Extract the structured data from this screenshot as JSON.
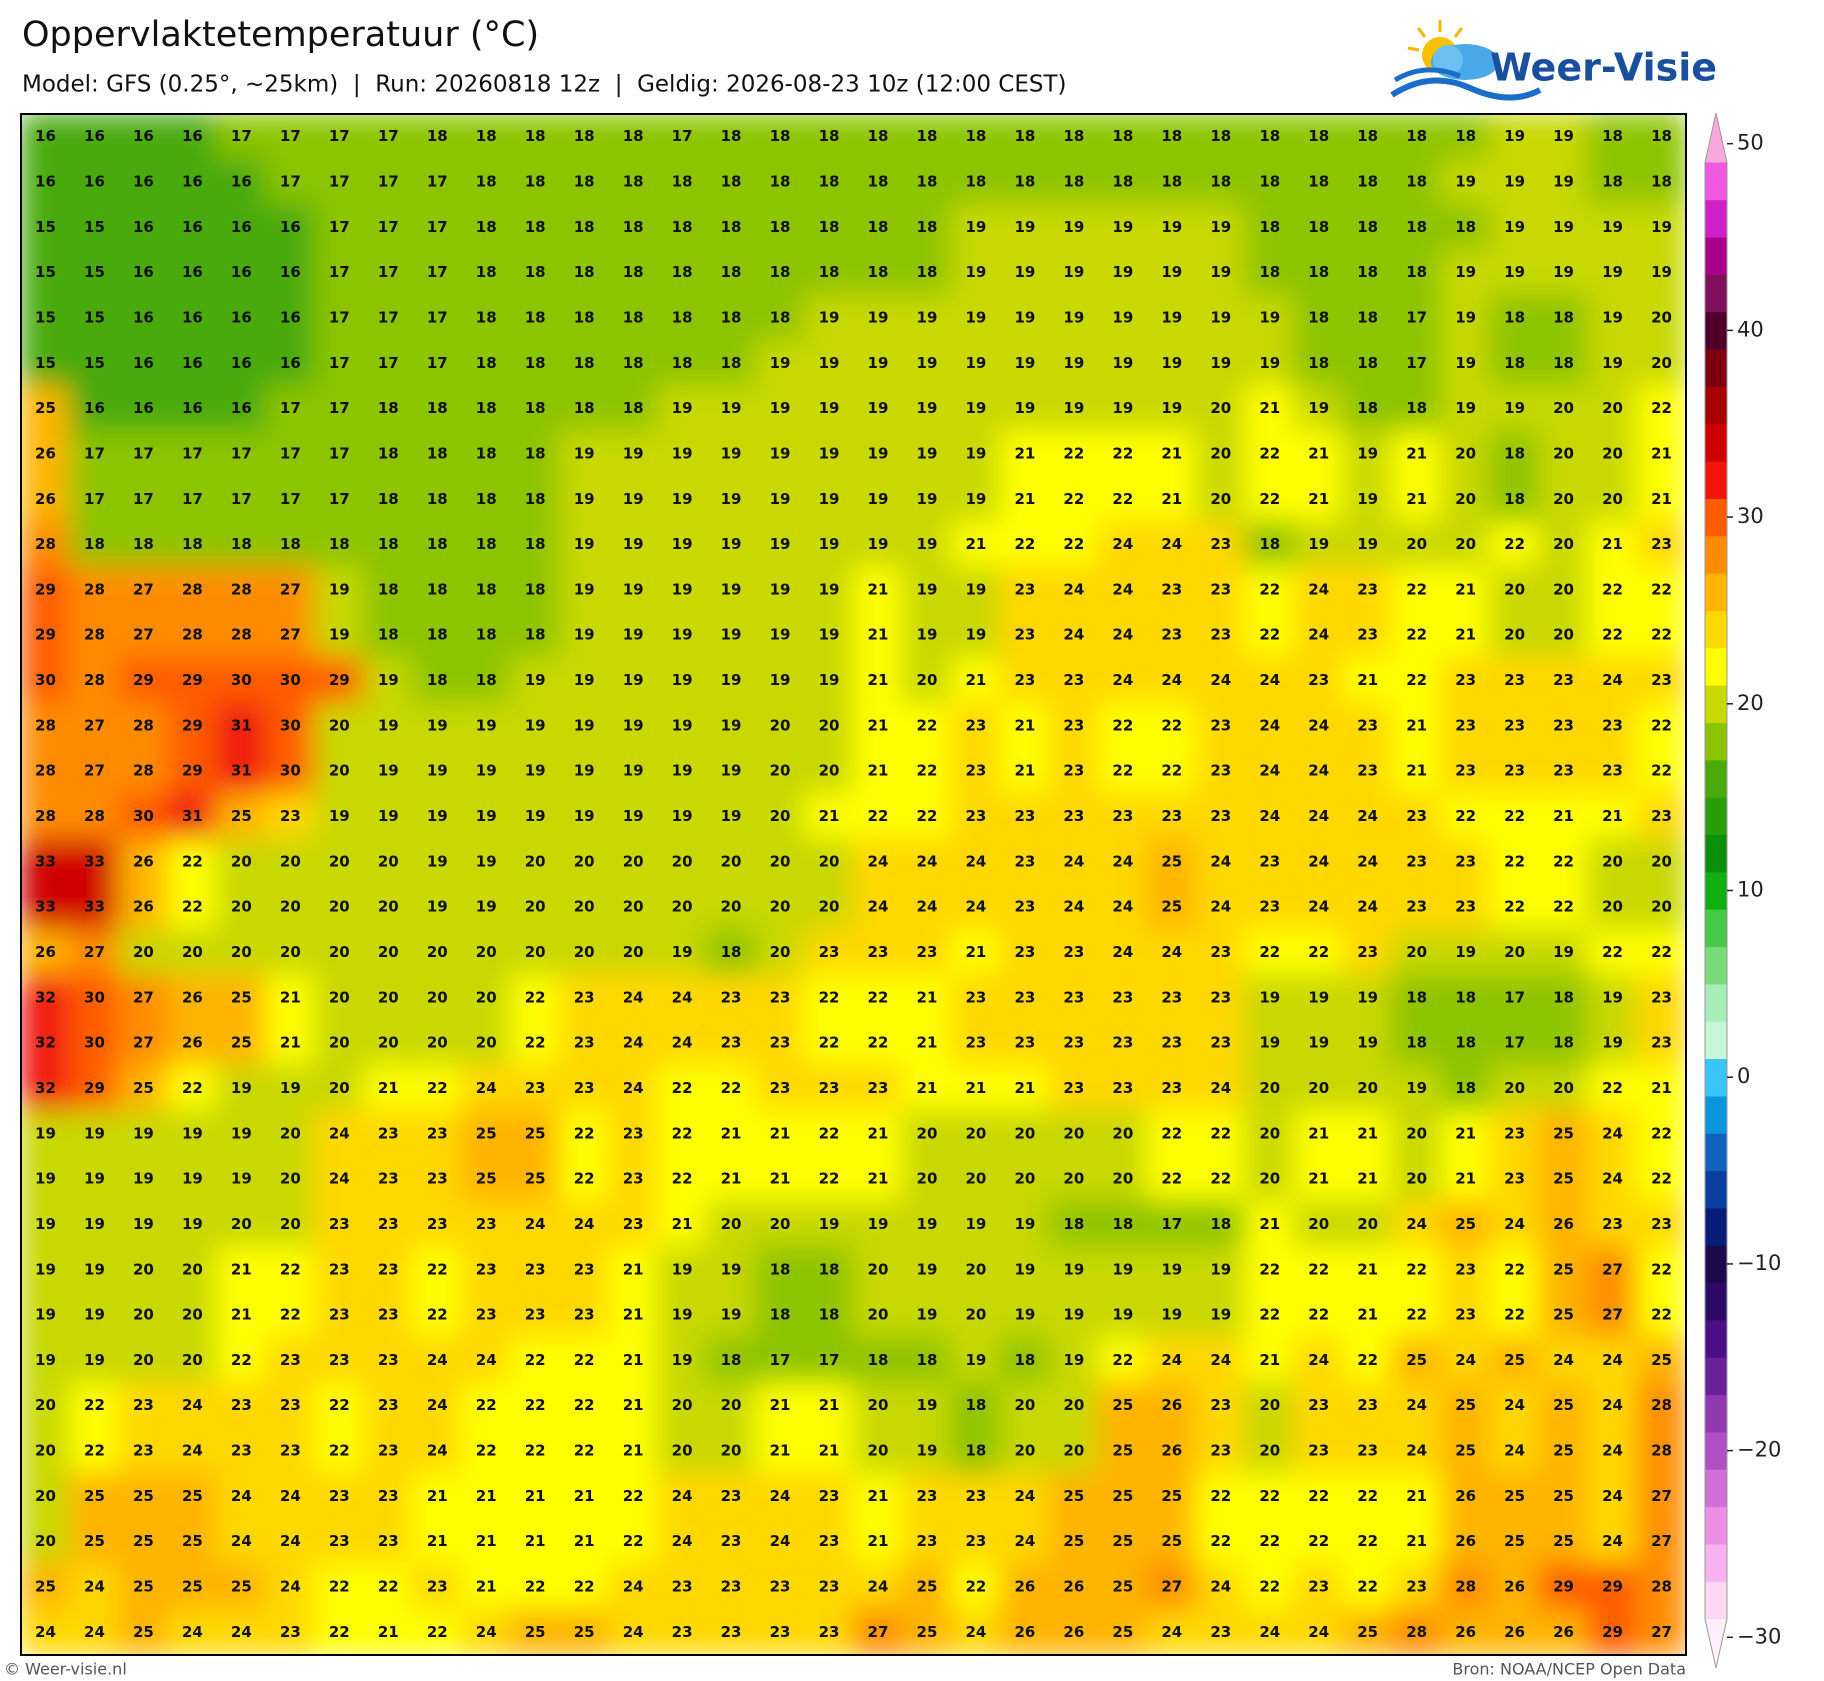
{
  "header": {
    "title": "Oppervlaktetemperatuur (°C)",
    "subtitle": "Model: GFS (0.25°, ~25km)  |  Run: 20260818 12z  |  Geldig: 2026-08-23 10z (12:00 CEST)",
    "logo": "Weer-Visie"
  },
  "footer": {
    "left": "© Weer-visie.nl",
    "right": "Bron: NOAA/NCEP Open Data"
  },
  "colorbar": {
    "lim": [
      -31,
      51
    ],
    "step": 2,
    "ticks": [
      {
        "value": -30,
        "label": "−30"
      },
      {
        "value": -20,
        "label": "−20"
      },
      {
        "value": -10,
        "label": "−10"
      },
      0,
      10,
      20,
      30,
      40,
      50
    ],
    "colors": [
      "#fdf0fb",
      "#fcd8f5",
      "#f8b2f0",
      "#ec8ee6",
      "#d070d8",
      "#b050c4",
      "#9038b0",
      "#6a209a",
      "#4a0e86",
      "#2c0a66",
      "#1a0a4a",
      "#061c78",
      "#0a3ea0",
      "#1062be",
      "#0a96dc",
      "#38c4f4",
      "#c8f5d8",
      "#a8ecb8",
      "#78da78",
      "#48c848",
      "#10b010",
      "#0a900a",
      "#2a9e0a",
      "#4aaa0a",
      "#8cc400",
      "#c8d800",
      "#ffff00",
      "#ffd800",
      "#ffb400",
      "#ff8c00",
      "#ff5c00",
      "#f0140a",
      "#d00000",
      "#a80000",
      "#7e0010",
      "#500028",
      "#80105e",
      "#a8008c",
      "#d020c8",
      "#f058e0",
      "#f8a8dc",
      "#fde0f4"
    ]
  },
  "grid": {
    "rows": [
      [
        16,
        16,
        16,
        16,
        17,
        17,
        17,
        17,
        18,
        18,
        18,
        18,
        18,
        17,
        18,
        18,
        18,
        18,
        18,
        18,
        18,
        18,
        18,
        18,
        18,
        18,
        18,
        18,
        18,
        18,
        19,
        19,
        18,
        18
      ],
      [
        16,
        16,
        16,
        16,
        16,
        17,
        17,
        17,
        17,
        18,
        18,
        18,
        18,
        18,
        18,
        18,
        18,
        18,
        18,
        18,
        18,
        18,
        18,
        18,
        18,
        18,
        18,
        18,
        18,
        19,
        19,
        19,
        18,
        18
      ],
      [
        15,
        15,
        16,
        16,
        16,
        16,
        17,
        17,
        17,
        18,
        18,
        18,
        18,
        18,
        18,
        18,
        18,
        18,
        18,
        19,
        19,
        19,
        19,
        19,
        19,
        18,
        18,
        18,
        18,
        18,
        19,
        19,
        19,
        19
      ],
      [
        15,
        15,
        16,
        16,
        16,
        16,
        17,
        17,
        17,
        18,
        18,
        18,
        18,
        18,
        18,
        18,
        18,
        18,
        18,
        19,
        19,
        19,
        19,
        19,
        19,
        18,
        18,
        18,
        18,
        19,
        19,
        19,
        19,
        19
      ],
      [
        15,
        15,
        16,
        16,
        16,
        16,
        17,
        17,
        17,
        18,
        18,
        18,
        18,
        18,
        18,
        18,
        19,
        19,
        19,
        19,
        19,
        19,
        19,
        19,
        19,
        19,
        18,
        18,
        17,
        19,
        18,
        18,
        19,
        20
      ],
      [
        15,
        15,
        16,
        16,
        16,
        16,
        17,
        17,
        17,
        18,
        18,
        18,
        18,
        18,
        18,
        19,
        19,
        19,
        19,
        19,
        19,
        19,
        19,
        19,
        19,
        19,
        18,
        18,
        17,
        19,
        18,
        18,
        19,
        20
      ],
      [
        25,
        16,
        16,
        16,
        16,
        17,
        17,
        18,
        18,
        18,
        18,
        18,
        18,
        19,
        19,
        19,
        19,
        19,
        19,
        19,
        19,
        19,
        19,
        19,
        20,
        21,
        19,
        18,
        18,
        19,
        19,
        20,
        20,
        22
      ],
      [
        26,
        17,
        17,
        17,
        17,
        17,
        17,
        18,
        18,
        18,
        18,
        19,
        19,
        19,
        19,
        19,
        19,
        19,
        19,
        19,
        21,
        22,
        22,
        21,
        20,
        22,
        21,
        19,
        21,
        20,
        18,
        20,
        20,
        21
      ],
      [
        26,
        17,
        17,
        17,
        17,
        17,
        17,
        18,
        18,
        18,
        18,
        19,
        19,
        19,
        19,
        19,
        19,
        19,
        19,
        19,
        21,
        22,
        22,
        21,
        20,
        22,
        21,
        19,
        21,
        20,
        18,
        20,
        20,
        21
      ],
      [
        28,
        18,
        18,
        18,
        18,
        18,
        18,
        18,
        18,
        18,
        18,
        19,
        19,
        19,
        19,
        19,
        19,
        19,
        19,
        21,
        22,
        22,
        24,
        24,
        23,
        18,
        19,
        19,
        20,
        20,
        22,
        20,
        21,
        23
      ],
      [
        29,
        28,
        27,
        28,
        28,
        27,
        19,
        18,
        18,
        18,
        18,
        19,
        19,
        19,
        19,
        19,
        19,
        21,
        19,
        19,
        23,
        24,
        24,
        23,
        23,
        22,
        24,
        23,
        22,
        21,
        20,
        20,
        22,
        22
      ],
      [
        29,
        28,
        27,
        28,
        28,
        27,
        19,
        18,
        18,
        18,
        18,
        19,
        19,
        19,
        19,
        19,
        19,
        21,
        19,
        19,
        23,
        24,
        24,
        23,
        23,
        22,
        24,
        23,
        22,
        21,
        20,
        20,
        22,
        22
      ],
      [
        30,
        28,
        29,
        29,
        30,
        30,
        29,
        19,
        18,
        18,
        19,
        19,
        19,
        19,
        19,
        19,
        19,
        21,
        20,
        21,
        23,
        23,
        24,
        24,
        24,
        24,
        23,
        21,
        22,
        23,
        23,
        23,
        24,
        23
      ],
      [
        28,
        27,
        28,
        29,
        31,
        30,
        20,
        19,
        19,
        19,
        19,
        19,
        19,
        19,
        19,
        20,
        20,
        21,
        22,
        23,
        21,
        23,
        22,
        22,
        23,
        24,
        24,
        23,
        21,
        23,
        23,
        23,
        23,
        22
      ],
      [
        28,
        27,
        28,
        29,
        31,
        30,
        20,
        19,
        19,
        19,
        19,
        19,
        19,
        19,
        19,
        20,
        20,
        21,
        22,
        23,
        21,
        23,
        22,
        22,
        23,
        24,
        24,
        23,
        21,
        23,
        23,
        23,
        23,
        22
      ],
      [
        28,
        28,
        30,
        31,
        25,
        23,
        19,
        19,
        19,
        19,
        19,
        19,
        19,
        19,
        19,
        20,
        21,
        22,
        22,
        23,
        23,
        23,
        23,
        23,
        23,
        24,
        24,
        24,
        23,
        22,
        22,
        21,
        21,
        23
      ],
      [
        33,
        33,
        26,
        22,
        20,
        20,
        20,
        20,
        19,
        19,
        20,
        20,
        20,
        20,
        20,
        20,
        20,
        24,
        24,
        24,
        23,
        24,
        24,
        25,
        24,
        23,
        24,
        24,
        23,
        23,
        22,
        22,
        20,
        20
      ],
      [
        33,
        33,
        26,
        22,
        20,
        20,
        20,
        20,
        19,
        19,
        20,
        20,
        20,
        20,
        20,
        20,
        20,
        24,
        24,
        24,
        23,
        24,
        24,
        25,
        24,
        23,
        24,
        24,
        23,
        23,
        22,
        22,
        20,
        20
      ],
      [
        26,
        27,
        20,
        20,
        20,
        20,
        20,
        20,
        20,
        20,
        20,
        20,
        20,
        19,
        18,
        20,
        23,
        23,
        23,
        21,
        23,
        23,
        24,
        24,
        23,
        22,
        22,
        23,
        20,
        19,
        20,
        19,
        22,
        22
      ],
      [
        32,
        30,
        27,
        26,
        25,
        21,
        20,
        20,
        20,
        20,
        22,
        23,
        24,
        24,
        23,
        23,
        22,
        22,
        21,
        23,
        23,
        23,
        23,
        23,
        23,
        19,
        19,
        19,
        18,
        18,
        17,
        18,
        19,
        23
      ],
      [
        32,
        30,
        27,
        26,
        25,
        21,
        20,
        20,
        20,
        20,
        22,
        23,
        24,
        24,
        23,
        23,
        22,
        22,
        21,
        23,
        23,
        23,
        23,
        23,
        23,
        19,
        19,
        19,
        18,
        18,
        17,
        18,
        19,
        23
      ],
      [
        32,
        29,
        25,
        22,
        19,
        19,
        20,
        21,
        22,
        24,
        23,
        23,
        24,
        22,
        22,
        23,
        23,
        23,
        21,
        21,
        21,
        23,
        23,
        23,
        24,
        20,
        20,
        20,
        19,
        18,
        20,
        20,
        22,
        21
      ],
      [
        19,
        19,
        19,
        19,
        19,
        20,
        24,
        23,
        23,
        25,
        25,
        22,
        23,
        22,
        21,
        21,
        22,
        21,
        20,
        20,
        20,
        20,
        20,
        22,
        22,
        20,
        21,
        21,
        20,
        21,
        23,
        25,
        24,
        22
      ],
      [
        19,
        19,
        19,
        19,
        19,
        20,
        24,
        23,
        23,
        25,
        25,
        22,
        23,
        22,
        21,
        21,
        22,
        21,
        20,
        20,
        20,
        20,
        20,
        22,
        22,
        20,
        21,
        21,
        20,
        21,
        23,
        25,
        24,
        22
      ],
      [
        19,
        19,
        19,
        19,
        20,
        20,
        23,
        23,
        23,
        23,
        24,
        24,
        23,
        21,
        20,
        20,
        19,
        19,
        19,
        19,
        19,
        18,
        18,
        17,
        18,
        21,
        20,
        20,
        24,
        25,
        24,
        26,
        23,
        23
      ],
      [
        19,
        19,
        20,
        20,
        21,
        22,
        23,
        23,
        22,
        23,
        23,
        23,
        21,
        19,
        19,
        18,
        18,
        20,
        19,
        20,
        19,
        19,
        19,
        19,
        19,
        22,
        22,
        21,
        22,
        23,
        22,
        25,
        27,
        22
      ],
      [
        19,
        19,
        20,
        20,
        21,
        22,
        23,
        23,
        22,
        23,
        23,
        23,
        21,
        19,
        19,
        18,
        18,
        20,
        19,
        20,
        19,
        19,
        19,
        19,
        19,
        22,
        22,
        21,
        22,
        23,
        22,
        25,
        27,
        22
      ],
      [
        19,
        19,
        20,
        20,
        22,
        23,
        23,
        23,
        24,
        24,
        22,
        22,
        21,
        19,
        18,
        17,
        17,
        18,
        18,
        19,
        18,
        19,
        22,
        24,
        24,
        21,
        24,
        22,
        25,
        24,
        25,
        24,
        24,
        25
      ],
      [
        20,
        22,
        23,
        24,
        23,
        23,
        22,
        23,
        24,
        22,
        22,
        22,
        21,
        20,
        20,
        21,
        21,
        20,
        19,
        18,
        20,
        20,
        25,
        26,
        23,
        20,
        23,
        23,
        24,
        25,
        24,
        25,
        24,
        28
      ],
      [
        20,
        22,
        23,
        24,
        23,
        23,
        22,
        23,
        24,
        22,
        22,
        22,
        21,
        20,
        20,
        21,
        21,
        20,
        19,
        18,
        20,
        20,
        25,
        26,
        23,
        20,
        23,
        23,
        24,
        25,
        24,
        25,
        24,
        28
      ],
      [
        20,
        25,
        25,
        25,
        24,
        24,
        23,
        23,
        21,
        21,
        21,
        21,
        22,
        24,
        23,
        24,
        23,
        21,
        23,
        23,
        24,
        25,
        25,
        25,
        22,
        22,
        22,
        22,
        21,
        26,
        25,
        25,
        24,
        27
      ],
      [
        20,
        25,
        25,
        25,
        24,
        24,
        23,
        23,
        21,
        21,
        21,
        21,
        22,
        24,
        23,
        24,
        23,
        21,
        23,
        23,
        24,
        25,
        25,
        25,
        22,
        22,
        22,
        22,
        21,
        26,
        25,
        25,
        24,
        27
      ],
      [
        25,
        24,
        25,
        25,
        25,
        24,
        22,
        22,
        23,
        21,
        22,
        22,
        24,
        23,
        23,
        23,
        23,
        24,
        25,
        22,
        26,
        26,
        25,
        27,
        24,
        22,
        23,
        22,
        23,
        28,
        26,
        29,
        29,
        28
      ],
      [
        24,
        24,
        25,
        24,
        24,
        23,
        22,
        21,
        22,
        24,
        25,
        25,
        24,
        23,
        23,
        23,
        23,
        27,
        25,
        24,
        26,
        26,
        25,
        24,
        23,
        24,
        24,
        25,
        28,
        26,
        26,
        26,
        29,
        27
      ]
    ]
  }
}
